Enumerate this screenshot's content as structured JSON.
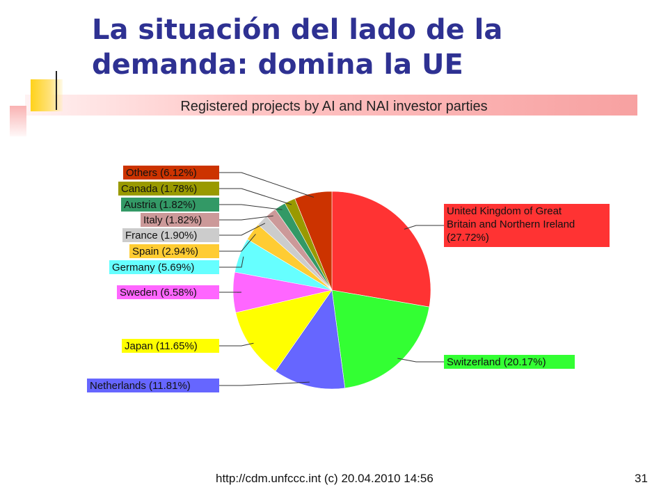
{
  "slide": {
    "title": "La situación del lado de la demanda: domina la UE",
    "footer": "http://cdm.unfccc.int (c) 20.04.2010 14:56",
    "page_number": "31"
  },
  "chart_data": {
    "type": "pie",
    "title": "Registered projects by AI and NAI investor parties",
    "slices": [
      {
        "label": "United Kingdom of Great Britain and Northern Ireland (27.72%)",
        "label_lines": [
          "United Kingdom of Great",
          "Britain and Northern Ireland",
          "(27.72%)"
        ],
        "value": 27.72,
        "color": "#ff3333"
      },
      {
        "label": "Switzerland (20.17%)",
        "value": 20.17,
        "color": "#33ff33"
      },
      {
        "label": "Netherlands (11.81%)",
        "value": 11.81,
        "color": "#6666ff"
      },
      {
        "label": "Japan (11.65%)",
        "value": 11.65,
        "color": "#ffff00"
      },
      {
        "label": "Sweden (6.58%)",
        "value": 6.58,
        "color": "#ff66ff"
      },
      {
        "label": "Germany (5.69%)",
        "value": 5.69,
        "color": "#66ffff"
      },
      {
        "label": "Spain (2.94%)",
        "value": 2.94,
        "color": "#ffcc33"
      },
      {
        "label": "France (1.90%)",
        "value": 1.9,
        "color": "#cccccc"
      },
      {
        "label": "Italy (1.82%)",
        "value": 1.82,
        "color": "#cc9999"
      },
      {
        "label": "Austria (1.82%)",
        "value": 1.82,
        "color": "#339966"
      },
      {
        "label": "Canada (1.78%)",
        "value": 1.78,
        "color": "#999900"
      },
      {
        "label": "Others (6.12%)",
        "value": 6.12,
        "color": "#cc3300"
      }
    ]
  }
}
